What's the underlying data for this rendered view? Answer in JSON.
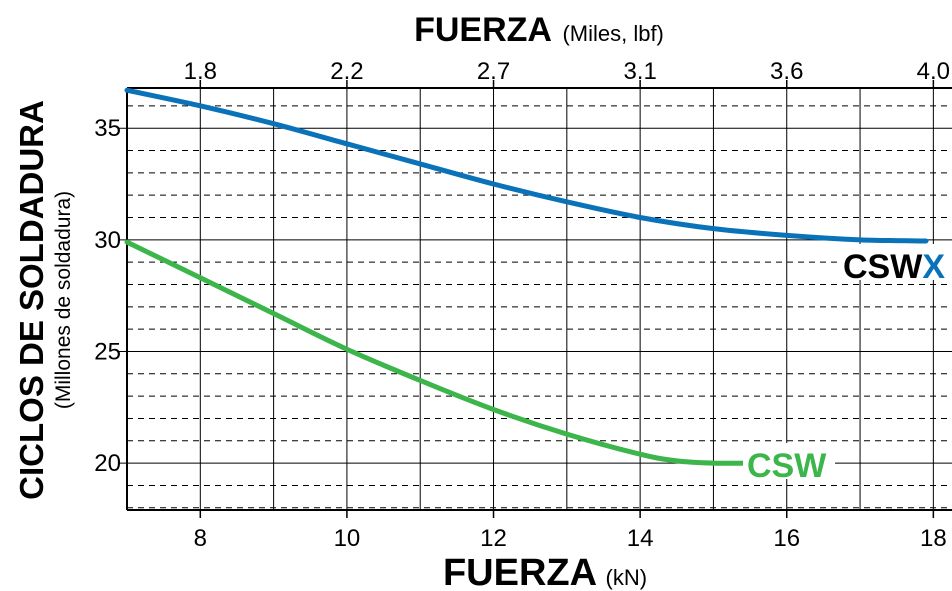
{
  "chart_data": {
    "type": "line",
    "title_top": {
      "bold": "FUERZA",
      "unit": "(Miles, lbf)"
    },
    "xlabel": {
      "bold": "FUERZA",
      "unit": "(kN)"
    },
    "ylabel": {
      "bold": "CICLOS DE SOLDADURA",
      "unit": "(Millones de soldadura)"
    },
    "x_range_kN": [
      7,
      18.8
    ],
    "y_range": [
      17.9,
      36.8
    ],
    "x_ticks_bottom": [
      8,
      10,
      12,
      14,
      16,
      18
    ],
    "x_tick_labels_bottom": [
      "8",
      "10",
      "12",
      "14",
      "16",
      "18"
    ],
    "x_ticks_top_kN": [
      8,
      10,
      12,
      14,
      16,
      18
    ],
    "x_tick_labels_top": [
      "1.8",
      "2.2",
      "2.7",
      "3.1",
      "3.6",
      "4.0"
    ],
    "y_ticks_major": [
      20,
      25,
      30,
      35
    ],
    "y_tick_labels": [
      "20",
      "25",
      "30",
      "35"
    ],
    "grid": {
      "vertical_kN": [
        8,
        9,
        10,
        11,
        12,
        13,
        14,
        15,
        16,
        17,
        18
      ],
      "horizontal_solid": [
        20,
        25,
        30,
        35
      ],
      "horizontal_dashed_step": 1
    },
    "series": [
      {
        "name": "CSWX",
        "label_prefix": "CSW",
        "label_suffix": "X",
        "color": "#0a72b8",
        "x": [
          7,
          8,
          9,
          10,
          11,
          12,
          13,
          14,
          15,
          16,
          17,
          17.9
        ],
        "y": [
          36.7,
          36.0,
          35.2,
          34.3,
          33.4,
          32.5,
          31.7,
          31.0,
          30.5,
          30.2,
          30.0,
          29.95
        ]
      },
      {
        "name": "CSW",
        "label_prefix": "CSW",
        "label_suffix": "",
        "color": "#3cb54a",
        "x": [
          7,
          8,
          9,
          10,
          11,
          12,
          13,
          14,
          14.5,
          15,
          15.6
        ],
        "y": [
          29.9,
          28.3,
          26.7,
          25.1,
          23.7,
          22.4,
          21.3,
          20.4,
          20.1,
          20.0,
          20.0
        ]
      }
    ]
  }
}
